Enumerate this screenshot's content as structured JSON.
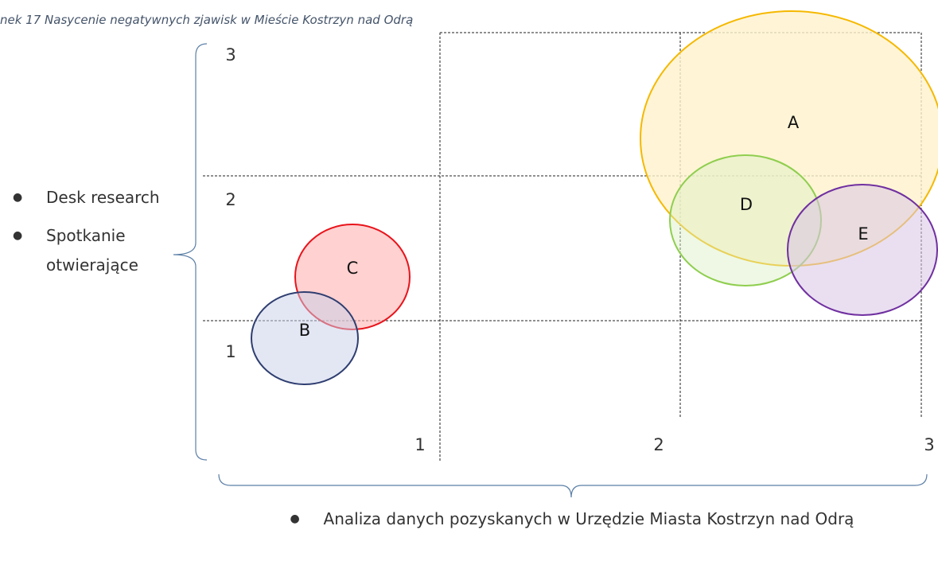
{
  "caption": "nek 17 Nasycenie negatywnych zjawisk w Mieście Kostrzyn nad Odrą",
  "y_axis": {
    "ticks": [
      "1",
      "2",
      "3"
    ],
    "items": [
      "Desk research",
      "Spotkanie otwierające"
    ]
  },
  "x_axis": {
    "ticks": [
      "1",
      "2",
      "3"
    ],
    "items": [
      "Analiza danych pozyskanych w Urzędzie Miasta Kostrzyn nad Odrą"
    ]
  },
  "ellipses": [
    {
      "label": "A"
    },
    {
      "label": "B"
    },
    {
      "label": "C"
    },
    {
      "label": "D"
    },
    {
      "label": "E"
    }
  ]
}
